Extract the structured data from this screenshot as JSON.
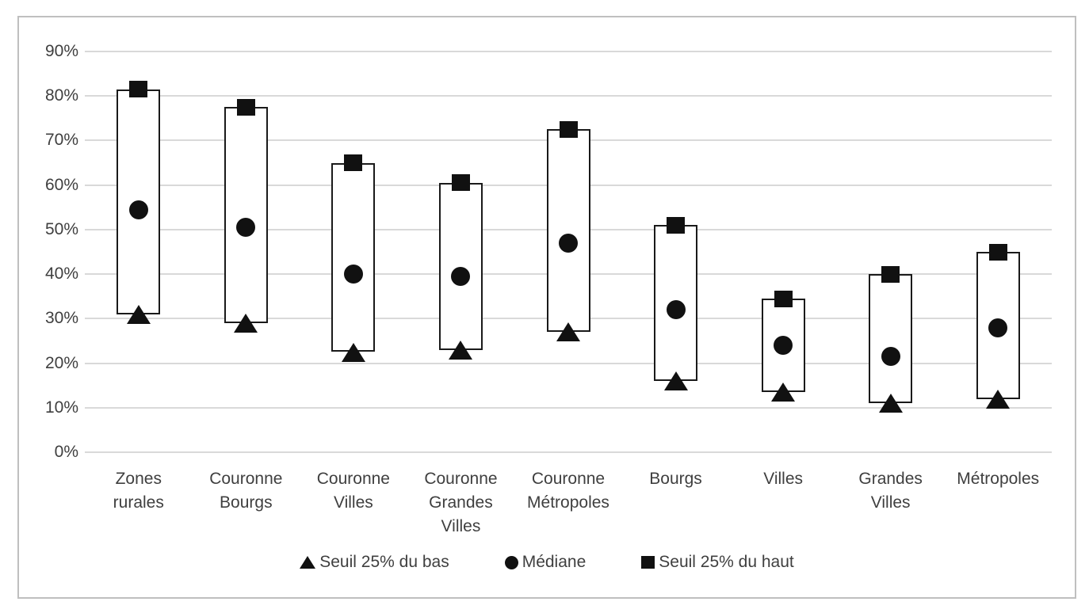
{
  "chart_data": {
    "type": "bar",
    "subtype": "floating-range-bars-with-markers",
    "title": "",
    "categories": [
      "Zones rurales",
      "Couronne Bourgs",
      "Couronne Villes",
      "Couronne Grandes Villes",
      "Couronne Métropoles",
      "Bourgs",
      "Villes",
      "Grandes Villes",
      "Métropoles"
    ],
    "series": [
      {
        "name": "Seuil 25% du bas",
        "marker": "triangle",
        "values": [
          31,
          29,
          22.5,
          23,
          27,
          16,
          13.5,
          11,
          12
        ]
      },
      {
        "name": "Médiane",
        "marker": "circle",
        "values": [
          54.5,
          50.5,
          40,
          39.5,
          47,
          32,
          24,
          21.5,
          28
        ]
      },
      {
        "name": "Seuil 25% du haut",
        "marker": "square",
        "values": [
          81.5,
          77.5,
          65,
          60.5,
          72.5,
          51,
          34.5,
          40,
          45
        ]
      }
    ],
    "bars": "each bar spans from 'Seuil 25% du bas' value up to 'Seuil 25% du haut' value",
    "xlabel": "",
    "ylabel": "",
    "ylim": [
      0,
      90
    ],
    "y_tick_step": 10,
    "y_tick_suffix": "%",
    "grid": "horizontal",
    "legend_position": "bottom",
    "legend": [
      {
        "marker": "triangle",
        "label": "Seuil 25% du bas"
      },
      {
        "marker": "circle",
        "label": "Médiane"
      },
      {
        "marker": "square",
        "label": "Seuil 25% du haut"
      }
    ],
    "colors": {
      "marker": "#111111",
      "bar_border": "#1a1a1a",
      "bar_fill": "#ffffff",
      "gridline": "#d9d9d9",
      "frame_border": "#bfbfbf",
      "text": "#3f3f3f",
      "background": "#ffffff"
    }
  }
}
